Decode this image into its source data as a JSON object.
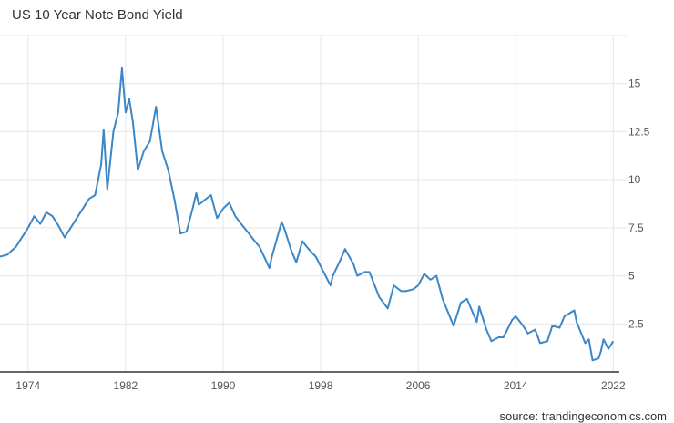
{
  "chart_data": {
    "type": "line",
    "title": "US 10 Year Note Bond Yield",
    "source": "source: trandingeconomics.com",
    "xlabel": "",
    "ylabel": "",
    "xlim": [
      1971.7,
      2022.5
    ],
    "ylim": [
      0,
      17.5
    ],
    "grid": true,
    "x_ticks": [
      1974,
      1982,
      1990,
      1998,
      2006,
      2014,
      2022
    ],
    "y_ticks": [
      2.5,
      5,
      7.5,
      10,
      12.5,
      15
    ],
    "y_tick_labels": [
      "2.5",
      "5",
      "7.5",
      "10",
      "12.5",
      "15"
    ],
    "line_color": "#3c87c7",
    "series": [
      {
        "name": "US 10Y yield",
        "x": [
          1971.7,
          1972.3,
          1973,
          1973.5,
          1974,
          1974.5,
          1975,
          1975.5,
          1976,
          1976.5,
          1977,
          1977.5,
          1978,
          1978.5,
          1979,
          1979.5,
          1980,
          1980.2,
          1980.5,
          1981,
          1981.4,
          1981.7,
          1982,
          1982.3,
          1982.6,
          1983,
          1983.5,
          1984,
          1984.5,
          1985,
          1985.5,
          1986,
          1986.5,
          1987,
          1987.5,
          1987.8,
          1988,
          1988.6,
          1989,
          1989.5,
          1990,
          1990.5,
          1991,
          1991.6,
          1992,
          1992.6,
          1993,
          1993.8,
          1994,
          1994.8,
          1995,
          1995.6,
          1996,
          1996.5,
          1997,
          1997.6,
          1998,
          1998.8,
          1999,
          1999.6,
          2000,
          2000.7,
          2001,
          2001.6,
          2002,
          2002.8,
          2003.5,
          2004,
          2004.6,
          2005,
          2005.6,
          2006,
          2006.5,
          2007,
          2007.5,
          2008,
          2008.9,
          2009.5,
          2010,
          2010.8,
          2011,
          2011.6,
          2012,
          2012.6,
          2013,
          2013.7,
          2014,
          2014.6,
          2015,
          2015.6,
          2016,
          2016.6,
          2017,
          2017.6,
          2018,
          2018.8,
          2019,
          2019.7,
          2020,
          2020.3,
          2020.8,
          2021,
          2021.2,
          2021.6,
          2022
        ],
        "y": [
          6.0,
          6.1,
          6.5,
          7.0,
          7.5,
          8.1,
          7.7,
          8.3,
          8.1,
          7.6,
          7.0,
          7.5,
          8.0,
          8.5,
          9.0,
          9.2,
          10.8,
          12.6,
          9.5,
          12.5,
          13.5,
          15.8,
          13.5,
          14.2,
          13.0,
          10.5,
          11.5,
          12.0,
          13.8,
          11.5,
          10.5,
          9.0,
          7.2,
          7.3,
          8.5,
          9.3,
          8.7,
          9.0,
          9.2,
          8.0,
          8.5,
          8.8,
          8.1,
          7.6,
          7.3,
          6.8,
          6.5,
          5.4,
          6.0,
          7.8,
          7.5,
          6.3,
          5.7,
          6.8,
          6.4,
          6.0,
          5.5,
          4.5,
          5.0,
          5.8,
          6.4,
          5.6,
          5.0,
          5.2,
          5.2,
          3.9,
          3.3,
          4.5,
          4.2,
          4.2,
          4.3,
          4.5,
          5.1,
          4.8,
          5.0,
          3.8,
          2.4,
          3.6,
          3.8,
          2.6,
          3.4,
          2.2,
          1.6,
          1.8,
          1.8,
          2.7,
          2.9,
          2.4,
          2.0,
          2.2,
          1.5,
          1.6,
          2.4,
          2.3,
          2.9,
          3.2,
          2.6,
          1.5,
          1.7,
          0.6,
          0.7,
          1.1,
          1.7,
          1.2,
          1.6
        ]
      }
    ]
  }
}
